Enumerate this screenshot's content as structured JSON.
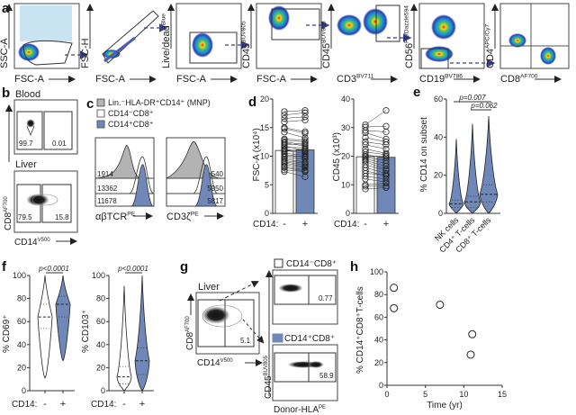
{
  "panel_labels": {
    "a": "a",
    "b": "b",
    "c": "c",
    "d": "d",
    "e": "e",
    "f": "f",
    "g": "g",
    "h": "h"
  },
  "panel_a": {
    "plots": [
      {
        "y": "SSC-A",
        "y_sup": "",
        "x": "FSC-A",
        "x_sup": ""
      },
      {
        "y": "FSC-H",
        "y_sup": "",
        "x": "FSC-A",
        "x_sup": ""
      },
      {
        "y": "Live/dead",
        "y_sup": "Blue",
        "x": "FSC-A",
        "x_sup": ""
      },
      {
        "y": "CD45",
        "y_sup": "BUV805",
        "x": "FSC-A",
        "x_sup": ""
      },
      {
        "y": "CD45",
        "y_sup": "BUV805",
        "x": "CD3",
        "x_sup": "BV711"
      },
      {
        "y": "CD56",
        "y_sup": "PE/Dazzle594",
        "x": "CD19",
        "x_sup": "BV786"
      },
      {
        "y": "CD4",
        "y_sup": "APC/Cy7",
        "x": "CD8",
        "x_sup": "AF700"
      }
    ]
  },
  "panel_b": {
    "blood_label": "Blood",
    "liver_label": "Liver",
    "y_axis": "CD8",
    "y_sup": "AF700",
    "x_axis": "CD14",
    "x_sup": "V500",
    "blood_values": [
      "99.7",
      "0.01"
    ],
    "liver_values": [
      "79.5",
      "15.8"
    ]
  },
  "panel_c": {
    "legend": [
      {
        "label": "Lin.⁻HLA-DR⁺CD14⁺ (MNP)",
        "color": "#b3b3b3"
      },
      {
        "label": "CD14⁻CD8⁺",
        "color": "#ffffff"
      },
      {
        "label": "CD14⁺CD8⁺",
        "color": "#6f88b8"
      }
    ],
    "left": {
      "x": "αβTCR",
      "x_sup": "PE",
      "values": [
        "1914",
        "13362",
        "11678"
      ]
    },
    "right": {
      "x": "CD3ζ",
      "x_sup": "PE",
      "values": [
        "540",
        "5950",
        "5817"
      ]
    }
  },
  "chart_data": [
    {
      "id": "d-left",
      "type": "bar",
      "ylabel": "FSC-A (x10⁴)",
      "xlabel": "CD14:",
      "categories": [
        "-",
        "+"
      ],
      "values": [
        11.0,
        11.1
      ],
      "ylim": [
        0,
        20
      ],
      "yticks": [
        0,
        5,
        10,
        15,
        20
      ],
      "paired_points": [
        [
          17.8,
          18.0
        ],
        [
          17.2,
          17.6
        ],
        [
          16.6,
          16.9
        ],
        [
          16.0,
          16.3
        ],
        [
          15.0,
          14.3
        ],
        [
          14.8,
          14.0
        ],
        [
          14.2,
          13.2
        ],
        [
          13.0,
          12.8
        ],
        [
          12.8,
          12.5
        ],
        [
          12.5,
          12.0
        ],
        [
          12.3,
          11.8
        ],
        [
          12.0,
          12.2
        ],
        [
          11.8,
          11.0
        ],
        [
          11.5,
          11.5
        ],
        [
          11.2,
          10.8
        ],
        [
          11.0,
          10.5
        ],
        [
          10.8,
          11.3
        ],
        [
          10.5,
          10.2
        ],
        [
          10.3,
          9.8
        ],
        [
          10.0,
          10.0
        ],
        [
          9.8,
          9.5
        ],
        [
          9.5,
          9.0
        ],
        [
          9.2,
          8.8
        ],
        [
          9.0,
          8.5
        ],
        [
          8.8,
          8.2
        ],
        [
          8.5,
          8.0
        ],
        [
          8.2,
          7.6
        ],
        [
          8.0,
          7.4
        ],
        [
          7.6,
          7.3
        ],
        [
          7.3,
          6.4
        ]
      ]
    },
    {
      "id": "d-right",
      "type": "bar",
      "ylabel": "CD45 (x10³)",
      "xlabel": "CD14:",
      "categories": [
        "-",
        "+"
      ],
      "values": [
        19.8,
        19.6
      ],
      "ylim": [
        0,
        40
      ],
      "yticks": [
        0,
        10,
        20,
        30,
        40
      ],
      "paired_points": [
        [
          31.0,
          36.0
        ],
        [
          30.2,
          30.5
        ],
        [
          29.0,
          28.5
        ],
        [
          28.2,
          26.0
        ],
        [
          26.5,
          25.0
        ],
        [
          25.0,
          24.0
        ],
        [
          24.0,
          22.5
        ],
        [
          22.5,
          21.0
        ],
        [
          21.5,
          20.5
        ],
        [
          20.5,
          19.5
        ],
        [
          20.0,
          20.0
        ],
        [
          19.5,
          18.5
        ],
        [
          19.0,
          17.5
        ],
        [
          18.5,
          16.5
        ],
        [
          18.0,
          15.5
        ],
        [
          17.0,
          15.0
        ],
        [
          16.0,
          14.0
        ],
        [
          15.0,
          13.0
        ],
        [
          14.0,
          13.5
        ],
        [
          13.0,
          12.0
        ],
        [
          12.0,
          11.0
        ],
        [
          10.0,
          10.5
        ],
        [
          9.5,
          9.5
        ],
        [
          8.5,
          9.0
        ]
      ]
    },
    {
      "id": "e",
      "type": "violin",
      "ylabel": "% CD14 on subset",
      "categories": [
        "NK cells",
        "CD4⁺ T-cells",
        "CD8⁺ T-cells"
      ],
      "category_sup": [
        "",
        "+",
        "+"
      ],
      "medians": [
        5,
        6,
        10
      ],
      "quartiles": [
        [
          3,
          7
        ],
        [
          3,
          9
        ],
        [
          6,
          15
        ]
      ],
      "max": [
        39,
        47,
        51
      ],
      "ylim": [
        0,
        60
      ],
      "yticks": [
        0,
        20,
        40,
        60
      ],
      "annotations": [
        "p=0.007",
        "p=0.062"
      ]
    },
    {
      "id": "f-left",
      "type": "violin",
      "ylabel": "% CD69⁺",
      "xlabel": "CD14:",
      "categories": [
        "-",
        "+"
      ],
      "medians": [
        64,
        75
      ],
      "quartiles": [
        [
          54,
          75
        ],
        [
          64,
          82
        ]
      ],
      "min": [
        11,
        26
      ],
      "max": [
        100,
        100
      ],
      "ylim": [
        0,
        100
      ],
      "yticks": [
        0,
        20,
        40,
        60,
        80,
        100
      ],
      "annotations": [
        "p<0.0001"
      ]
    },
    {
      "id": "f-right",
      "type": "violin",
      "ylabel": "% CD103⁺",
      "xlabel": "CD14:",
      "categories": [
        "-",
        "+"
      ],
      "medians": [
        12,
        26
      ],
      "quartiles": [
        [
          6,
          21
        ],
        [
          14,
          37
        ]
      ],
      "min": [
        0,
        0
      ],
      "max": [
        91,
        100
      ],
      "ylim": [
        0,
        100
      ],
      "yticks": [
        0,
        20,
        40,
        60,
        80,
        100
      ],
      "annotations": [
        "p<0.0001"
      ]
    },
    {
      "id": "h",
      "type": "scatter",
      "xlabel": "Time (yr)",
      "ylabel": "% CD14⁺CD8⁺T-cells",
      "x": [
        0.9,
        0.9,
        6.9,
        11.1,
        10.9
      ],
      "y": [
        86,
        68,
        71,
        45,
        27
      ],
      "xlim": [
        0,
        15
      ],
      "ylim": [
        0,
        100
      ],
      "xticks": [
        0,
        5,
        10,
        15
      ],
      "yticks": [
        0,
        20,
        40,
        60,
        80,
        100
      ]
    }
  ],
  "panel_g": {
    "liver_label": "Liver",
    "y_axis": "CD8",
    "y_sup": "AF700",
    "x_axis": "CD14",
    "x_sup": "V500",
    "gate_value": "5.1",
    "sub_y": "CD45",
    "sub_y_sup": "BUV805",
    "sub_x": "Donor-HLA",
    "sub_x_sup": "PE",
    "top_title": "CD14⁻CD8⁺",
    "top_value": "0.77",
    "bottom_title": "CD14⁺CD8⁺",
    "bottom_value": "58.9"
  },
  "colors": {
    "blue": "#6f88b8",
    "grey": "#b3b3b3",
    "arrow": "#3a3f8f"
  }
}
